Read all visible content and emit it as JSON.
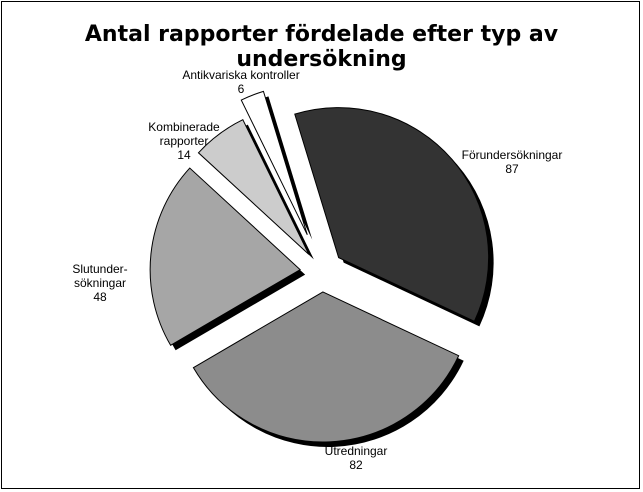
{
  "chart_data": {
    "type": "pie",
    "title": "Antal rapporter fördelade efter typ av undersökning",
    "categories": [
      "Förundersökningar",
      "Utredningar",
      "Slutunder-\nsökningar",
      "Kombinerade\nrapporter",
      "Antikvariska kontroller"
    ],
    "values": [
      87,
      82,
      48,
      14,
      6
    ],
    "colors": [
      "#333333",
      "#8c8c8c",
      "#a6a6a6",
      "#cccccc",
      "#ffffff"
    ]
  }
}
